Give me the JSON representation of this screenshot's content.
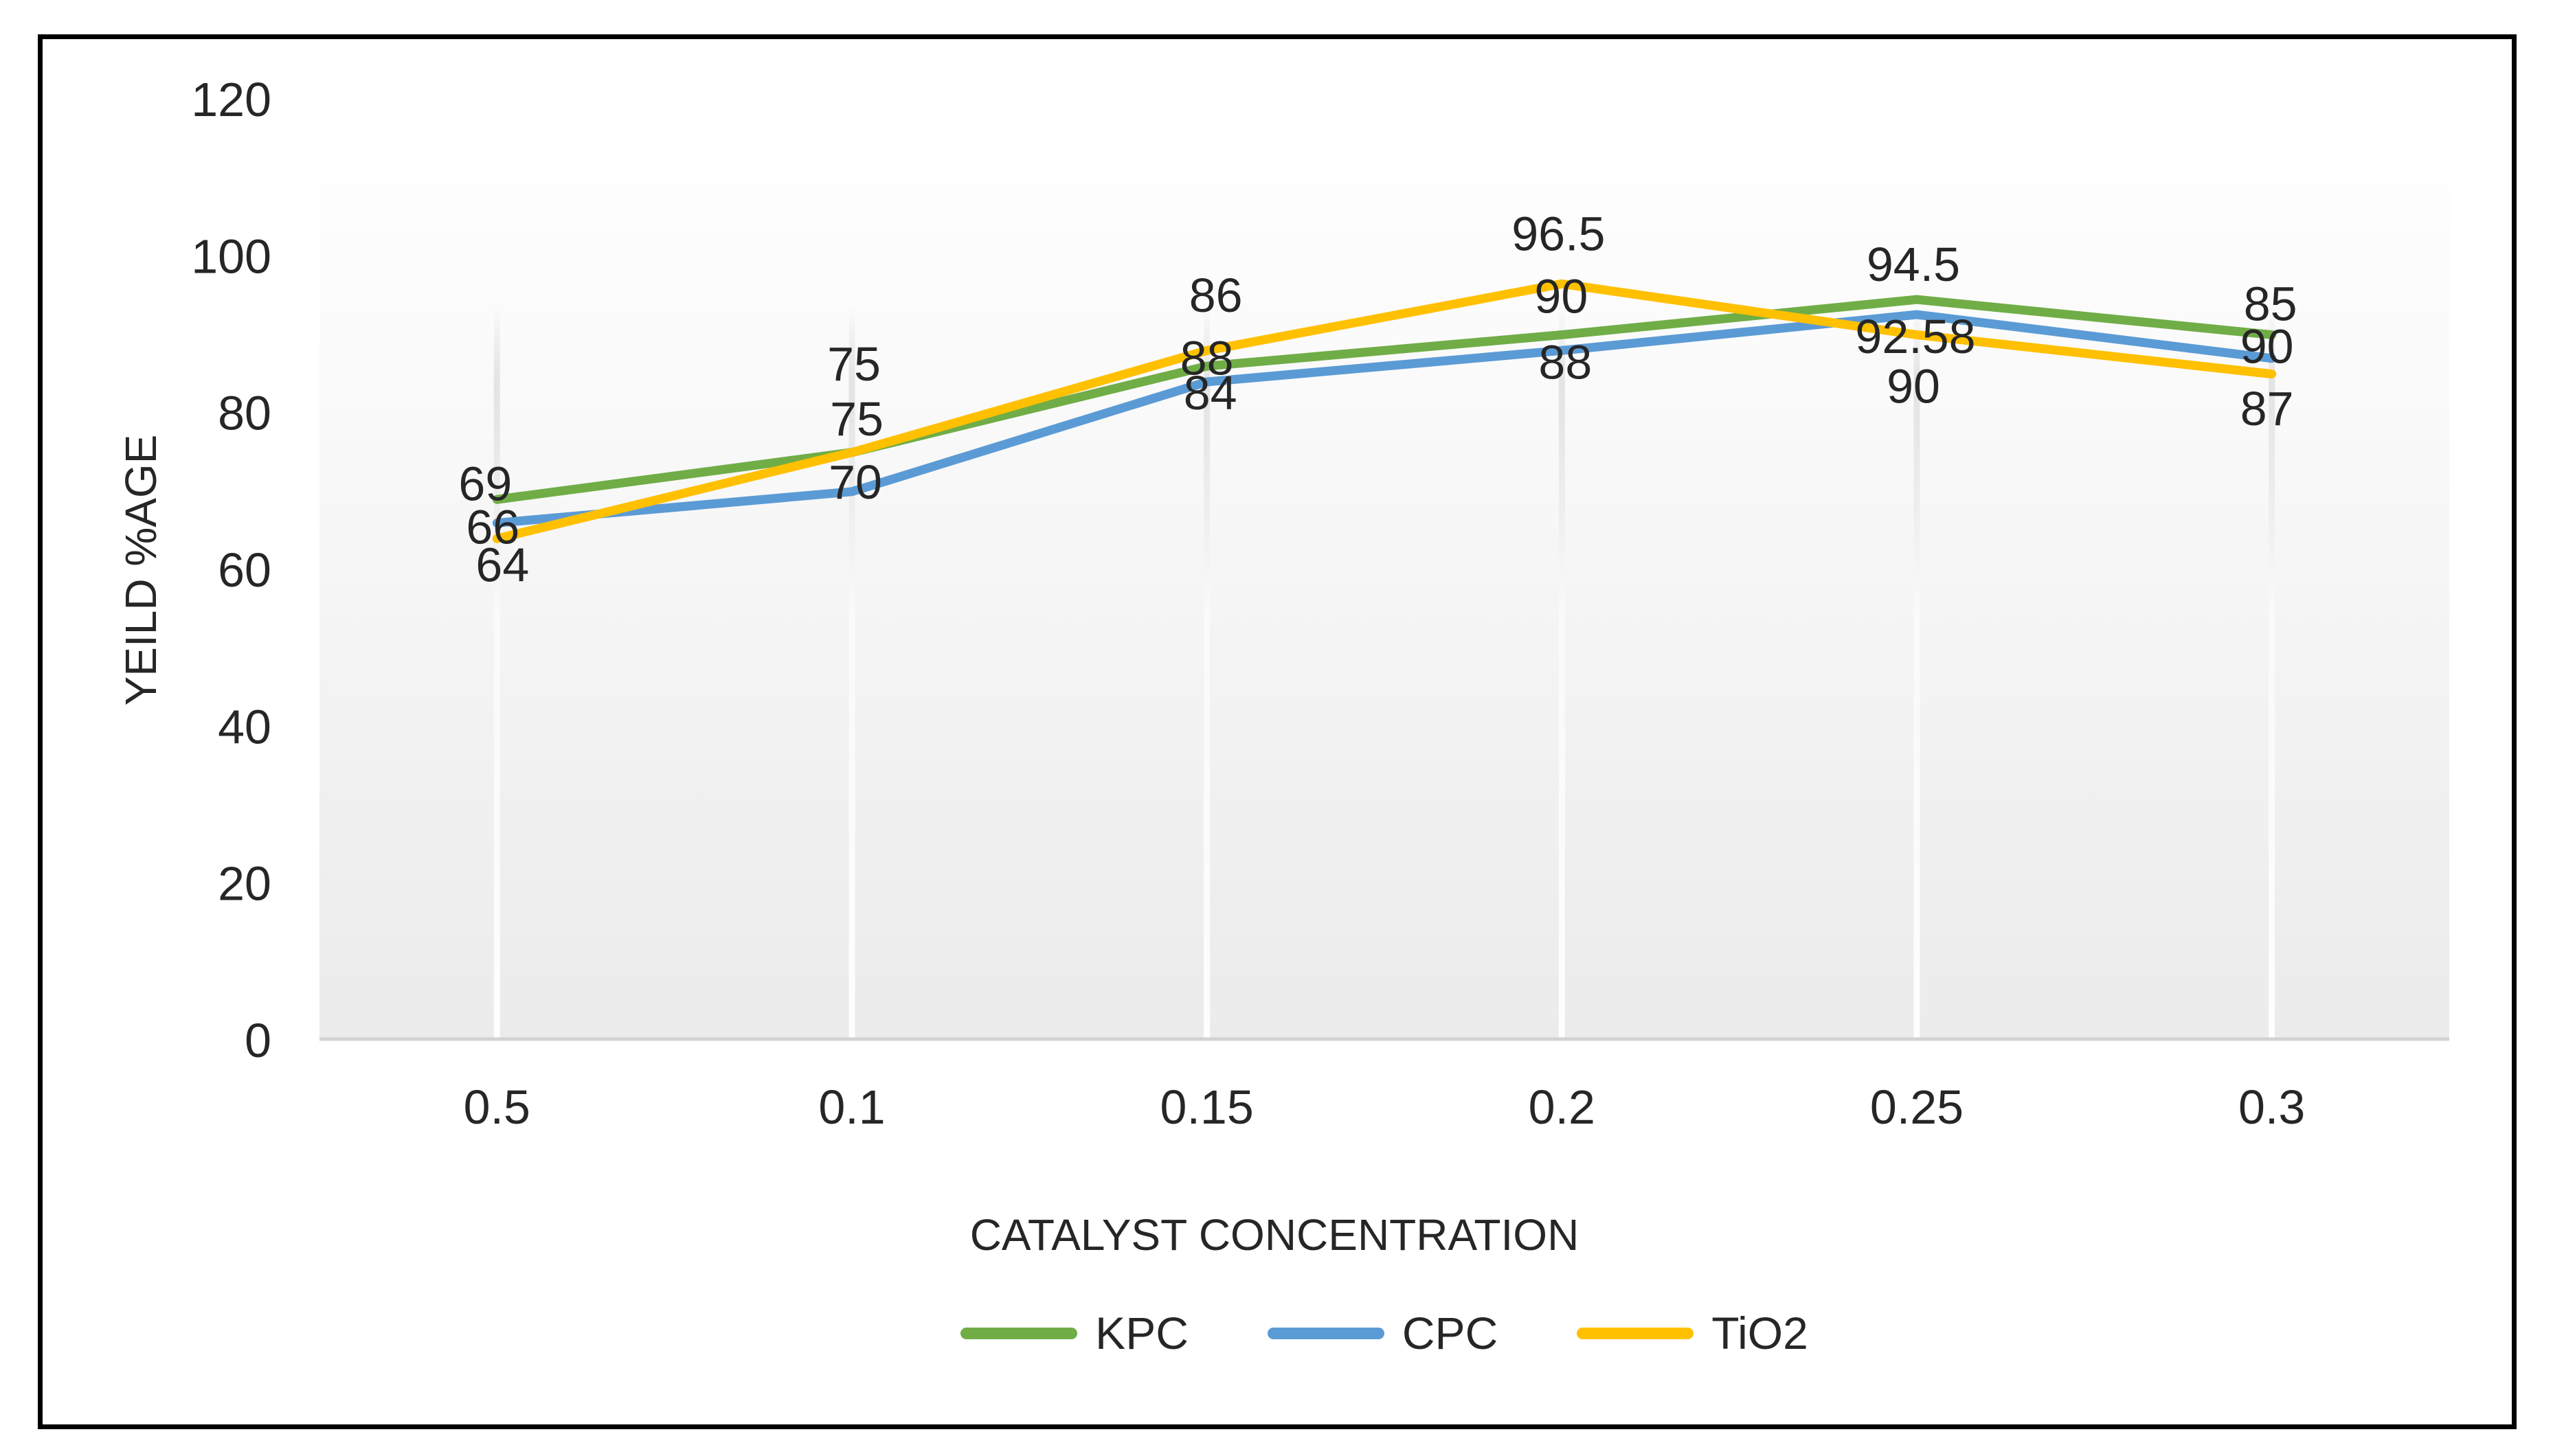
{
  "chart_data": {
    "type": "line",
    "title": "",
    "xlabel": "CATALYST CONCENTRATION",
    "ylabel": "YEILD %AGE",
    "categories": [
      "0.5",
      "0.1",
      "0.15",
      "0.2",
      "0.25",
      "0.3"
    ],
    "series": [
      {
        "name": "KPC",
        "color": "#70AD47",
        "values": [
          69,
          75,
          86,
          90,
          94.5,
          90
        ],
        "labels": [
          "69",
          "75",
          "86",
          "90",
          "94.5",
          "90"
        ]
      },
      {
        "name": "CPC",
        "color": "#5B9BD5",
        "values": [
          66,
          70,
          84,
          88,
          92.58,
          87
        ],
        "labels": [
          "66",
          "70",
          "84",
          "88",
          "92.58",
          "87"
        ]
      },
      {
        "name": "TiO2",
        "color": "#FFC000",
        "values": [
          64,
          75,
          88,
          96.5,
          90,
          85
        ],
        "labels": [
          "64",
          "75",
          "88",
          "96.5",
          "90",
          "85"
        ]
      }
    ],
    "yticks": [
      0,
      20,
      40,
      60,
      80,
      100,
      120
    ],
    "ylim": [
      0,
      120
    ],
    "grid": "vertical-only",
    "legend_position": "bottom",
    "colors": {
      "plot_fill_top": "#ffffff",
      "plot_fill_bottom": "#ebebeb",
      "axis_line": "#d2d2d2",
      "text": "#262626"
    }
  }
}
